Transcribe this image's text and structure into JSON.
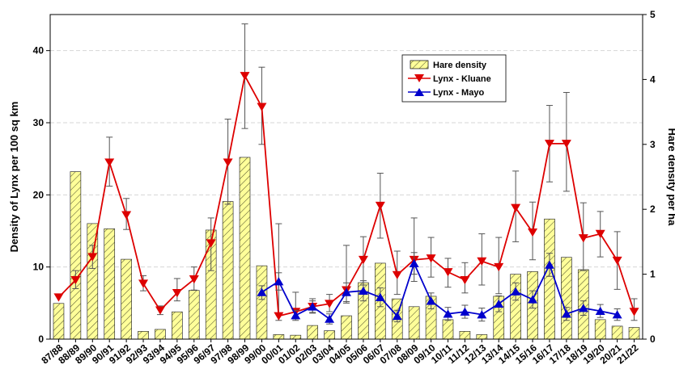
{
  "chart_data": {
    "type": "bar+line",
    "ylabel_left": "Density of Lynx per 100 sq km",
    "ylabel_right": "Hare density per ha",
    "ylim_left": [
      0,
      45
    ],
    "ylim_right": [
      0,
      5
    ],
    "yticks_left": [
      "0",
      "10",
      "20",
      "30",
      "40"
    ],
    "yticks_right": [
      "0",
      "1",
      "2",
      "3",
      "4",
      "5"
    ],
    "grid": "horizontal",
    "legend_position": "top-right",
    "categories": [
      "87/88",
      "88/89",
      "89/90",
      "90/91",
      "91/92",
      "92/93",
      "93/94",
      "94/95",
      "95/96",
      "96/97",
      "97/98",
      "98/99",
      "99/00",
      "00/01",
      "01/02",
      "02/03",
      "03/04",
      "04/05",
      "05/06",
      "06/07",
      "07/08",
      "08/09",
      "09/10",
      "10/11",
      "11/12",
      "12/13",
      "13/14",
      "14/15",
      "15/16",
      "16/17",
      "17/18",
      "18/19",
      "19/20",
      "20/21",
      "21/22"
    ],
    "hare": {
      "name": "Hare density",
      "axis": "right",
      "values": [
        0.55,
        2.58,
        1.78,
        1.7,
        1.23,
        0.12,
        0.15,
        0.42,
        0.75,
        1.68,
        2.12,
        2.8,
        1.13,
        0.07,
        0.06,
        0.21,
        0.13,
        0.36,
        0.87,
        1.17,
        0.62,
        0.5,
        0.66,
        0.3,
        0.12,
        0.07,
        0.66,
        1.0,
        1.04,
        1.85,
        1.26,
        1.07,
        0.3,
        0.2,
        0.18
      ],
      "color": "#ffff99"
    },
    "lynx_kluane": {
      "name": "Lynx - Kluane",
      "axis": "left",
      "color": "#dd0000",
      "values": [
        5.8,
        8.2,
        11.4,
        24.5,
        17.2,
        7.7,
        4.0,
        6.4,
        8.3,
        13.3,
        24.5,
        36.5,
        32.2,
        3.2,
        3.8,
        4.5,
        4.9,
        6.8,
        11.0,
        18.5,
        8.9,
        11.0,
        11.2,
        9.3,
        8.2,
        10.8,
        10.0,
        18.2,
        14.8,
        27.1,
        27.1,
        14.0,
        14.6,
        10.9,
        3.8
      ],
      "err_low": [
        5.8,
        7.0,
        9.8,
        21.2,
        15.2,
        6.7,
        3.4,
        5.3,
        6.8,
        9.5,
        18.7,
        29.2,
        27.0,
        2.6,
        2.8,
        3.6,
        3.8,
        5.0,
        7.5,
        14.0,
        6.2,
        8.0,
        8.6,
        7.2,
        6.4,
        7.5,
        6.3,
        13.5,
        11.0,
        21.8,
        20.5,
        9.5,
        11.4,
        6.9,
        2.6
      ],
      "err_high": [
        5.8,
        9.5,
        13.0,
        28.0,
        19.5,
        8.8,
        4.6,
        8.4,
        10.0,
        16.8,
        30.5,
        43.7,
        37.7,
        16.0,
        6.5,
        5.6,
        6.2,
        13.0,
        14.2,
        23.0,
        12.2,
        16.8,
        14.1,
        11.2,
        10.6,
        14.6,
        14.1,
        23.3,
        19.0,
        32.4,
        34.2,
        18.9,
        17.7,
        14.9,
        5.6
      ]
    },
    "lynx_mayo": {
      "name": "Lynx - Mayo",
      "axis": "left",
      "color": "#0000cc",
      "start_index": 12,
      "values": [
        6.5,
        8.0,
        3.3,
        4.5,
        2.8,
        6.5,
        6.7,
        5.8,
        3.2,
        10.5,
        5.3,
        3.5,
        3.8,
        3.4,
        4.9,
        6.6,
        5.5,
        10.3,
        3.5,
        4.3,
        3.9,
        3.4
      ],
      "err_low": [
        5.5,
        6.8,
        2.6,
        3.7,
        2.1,
        5.2,
        5.3,
        4.5,
        2.4,
        9.0,
        4.2,
        2.6,
        2.9,
        2.5,
        3.8,
        5.4,
        4.3,
        8.7,
        2.6,
        3.3,
        3.0,
        2.6
      ],
      "err_high": [
        7.4,
        9.2,
        4.0,
        5.3,
        3.5,
        7.8,
        8.1,
        7.1,
        4.0,
        12.0,
        6.4,
        4.4,
        4.7,
        4.3,
        6.0,
        7.8,
        6.7,
        11.9,
        4.4,
        5.3,
        4.8,
        4.2
      ]
    }
  }
}
